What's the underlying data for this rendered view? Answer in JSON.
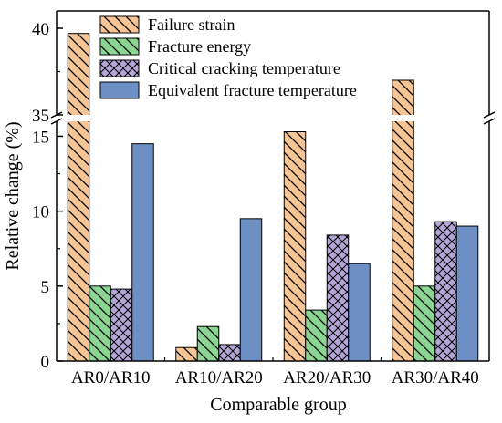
{
  "chart_data": {
    "type": "bar",
    "xlabel": "Comparable group",
    "ylabel": "Relative change (%)",
    "categories": [
      "AR0/AR10",
      "AR10/AR20",
      "AR20/AR30",
      "AR30/AR40"
    ],
    "series": [
      {
        "name": "Failure strain",
        "values": [
          39.7,
          0.9,
          15.3,
          37.0
        ],
        "color": "#F7C494",
        "pattern": "diagonal"
      },
      {
        "name": "Fracture energy",
        "values": [
          5.0,
          2.3,
          3.4,
          5.0
        ],
        "color": "#8CD694",
        "pattern": "diagonal"
      },
      {
        "name": "Critical cracking temperature",
        "values": [
          4.8,
          1.1,
          8.4,
          9.3
        ],
        "color": "#B3A6D6",
        "pattern": "crosshatch"
      },
      {
        "name": "Equivalent fracture temperature",
        "values": [
          14.5,
          9.5,
          6.5,
          9.0
        ],
        "color": "#6E8FC4",
        "pattern": "none"
      }
    ],
    "axis_break": {
      "lower_range": [
        0,
        16
      ],
      "upper_range": [
        35,
        41
      ]
    },
    "yticks_lower": [
      0,
      5,
      10,
      15
    ],
    "yticks_upper": [
      35,
      40
    ],
    "legend": "top-left",
    "grid": false
  }
}
